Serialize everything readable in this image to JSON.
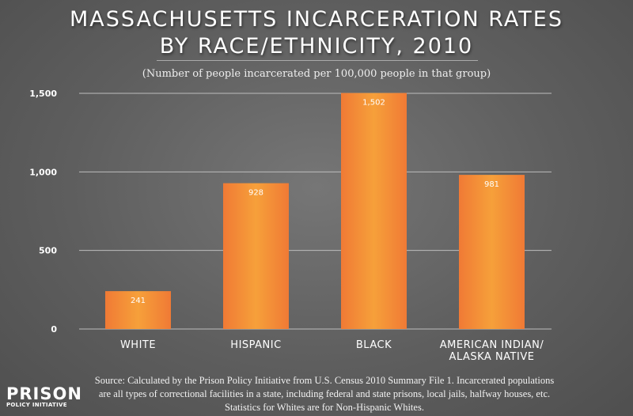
{
  "chart_data": {
    "type": "bar",
    "title_lines": [
      "MASSACHUSETTS INCARCERATION RATES",
      "BY RACE/ETHNICITY, 2010"
    ],
    "subtitle": "(Number of people incarcerated per 100,000 people in that group)",
    "categories": [
      [
        "WHITE"
      ],
      [
        "HISPANIC"
      ],
      [
        "BLACK"
      ],
      [
        "AMERICAN INDIAN/",
        "ALASKA NATIVE"
      ]
    ],
    "values": [
      241,
      928,
      1502,
      981
    ],
    "data_labels": [
      "241",
      "928",
      "1,502",
      "981"
    ],
    "yticks": [
      0,
      500,
      1000,
      1500
    ],
    "ytick_labels": [
      "0",
      "500",
      "1,000",
      "1,500"
    ],
    "ylim": [
      0,
      1500
    ],
    "grid": true,
    "bar_color": "#f07a35",
    "bar_color_center": "#f6a03a"
  },
  "source_lines": [
    "Source: Calculated by the Prison Policy Initiative from U.S. Census 2010 Summary File 1. Incarcerated populations",
    "are all types of correctional facilities in a state, including federal and state prisons, local jails, halfway houses, etc.",
    "Statistics for Whites are for Non-Hispanic Whites."
  ],
  "logo": {
    "line1": "PRISON",
    "line2": "POLICY INITIATIVE"
  }
}
